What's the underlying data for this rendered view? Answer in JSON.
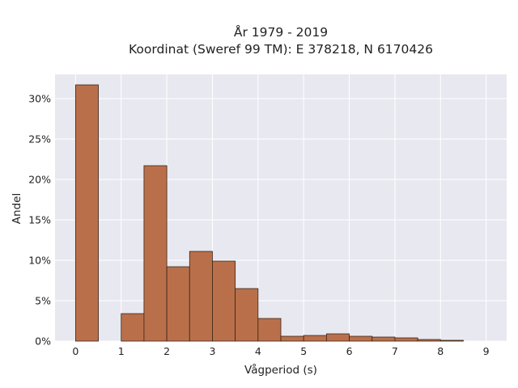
{
  "chart_data": {
    "type": "bar",
    "title_line1": "År 1979 - 2019",
    "title_line2": "Koordinat (Sweref 99 TM): E 378218, N 6170426",
    "xlabel": "Vågperiod (s)",
    "ylabel": "Andel",
    "xlim": [
      -0.45,
      9.45
    ],
    "ylim": [
      0,
      0.33
    ],
    "x_ticks": [
      0,
      1,
      2,
      3,
      4,
      5,
      6,
      7,
      8,
      9
    ],
    "y_ticks": [
      0,
      0.05,
      0.1,
      0.15,
      0.2,
      0.25,
      0.3
    ],
    "y_tick_labels": [
      "0%",
      "5%",
      "10%",
      "15%",
      "20%",
      "25%",
      "30%"
    ],
    "bin_width": 0.5,
    "bins": [
      {
        "x0": 0.0,
        "value": 0.317
      },
      {
        "x0": 0.5,
        "value": 0.0
      },
      {
        "x0": 1.0,
        "value": 0.034
      },
      {
        "x0": 1.5,
        "value": 0.217
      },
      {
        "x0": 2.0,
        "value": 0.092
      },
      {
        "x0": 2.5,
        "value": 0.111
      },
      {
        "x0": 3.0,
        "value": 0.099
      },
      {
        "x0": 3.5,
        "value": 0.065
      },
      {
        "x0": 4.0,
        "value": 0.028
      },
      {
        "x0": 4.5,
        "value": 0.006
      },
      {
        "x0": 5.0,
        "value": 0.007
      },
      {
        "x0": 5.5,
        "value": 0.009
      },
      {
        "x0": 6.0,
        "value": 0.006
      },
      {
        "x0": 6.5,
        "value": 0.005
      },
      {
        "x0": 7.0,
        "value": 0.004
      },
      {
        "x0": 7.5,
        "value": 0.002
      },
      {
        "x0": 8.0,
        "value": 0.001
      }
    ],
    "grid": true,
    "colors": {
      "bar_fill": "#b9704a",
      "bar_edge": "#3a2418",
      "plot_background": "#e8e8f0",
      "grid": "#ffffff"
    }
  }
}
